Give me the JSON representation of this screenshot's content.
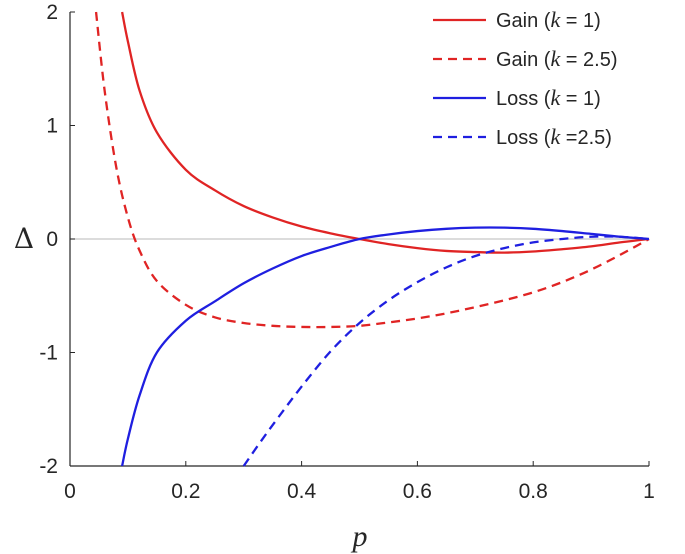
{
  "chart_data": {
    "type": "line",
    "title": "",
    "xlabel": "p",
    "ylabel": "Δ",
    "xlim": [
      0,
      1
    ],
    "ylim": [
      -2,
      2
    ],
    "xticks": [
      "0",
      "0.2",
      "0.4",
      "0.6",
      "0.8",
      "1"
    ],
    "yticks": [
      "-2",
      "-1",
      "0",
      "1",
      "2"
    ],
    "legend_position": "top-right",
    "reference_line": {
      "y": 0,
      "color": "#c8c8c8"
    },
    "series": [
      {
        "name": "Gain (k = 1)",
        "color": "#e02424",
        "dash": "solid",
        "x": [
          0.09,
          0.1,
          0.12,
          0.15,
          0.2,
          0.25,
          0.3,
          0.35,
          0.4,
          0.45,
          0.5,
          0.55,
          0.6,
          0.65,
          0.7,
          0.75,
          0.8,
          0.85,
          0.9,
          0.95,
          1.0
        ],
        "y": [
          2.0,
          1.74,
          1.31,
          0.94,
          0.61,
          0.43,
          0.29,
          0.19,
          0.11,
          0.05,
          0.0,
          -0.045,
          -0.08,
          -0.105,
          -0.115,
          -0.12,
          -0.11,
          -0.09,
          -0.065,
          -0.03,
          0.0
        ]
      },
      {
        "name": "Gain (k = 2.5)",
        "color": "#e02424",
        "dash": "dashed",
        "x": [
          0.045,
          0.06,
          0.08,
          0.1,
          0.12,
          0.15,
          0.2,
          0.25,
          0.3,
          0.35,
          0.4,
          0.45,
          0.5,
          0.55,
          0.6,
          0.65,
          0.7,
          0.75,
          0.8,
          0.85,
          0.9,
          0.95,
          1.0
        ],
        "y": [
          2.0,
          1.3,
          0.63,
          0.19,
          -0.1,
          -0.37,
          -0.58,
          -0.69,
          -0.74,
          -0.765,
          -0.775,
          -0.775,
          -0.765,
          -0.735,
          -0.7,
          -0.655,
          -0.6,
          -0.54,
          -0.47,
          -0.38,
          -0.27,
          -0.14,
          0.0
        ]
      },
      {
        "name": "Loss (k = 1)",
        "color": "#1f1fe0",
        "dash": "solid",
        "x": [
          0.09,
          0.1,
          0.12,
          0.15,
          0.2,
          0.25,
          0.3,
          0.35,
          0.4,
          0.45,
          0.5,
          0.55,
          0.6,
          0.65,
          0.7,
          0.75,
          0.8,
          0.85,
          0.9,
          0.95,
          1.0
        ],
        "y": [
          -2.0,
          -1.76,
          -1.38,
          -1.0,
          -0.72,
          -0.55,
          -0.39,
          -0.26,
          -0.15,
          -0.07,
          0.0,
          0.04,
          0.07,
          0.09,
          0.1,
          0.1,
          0.09,
          0.07,
          0.045,
          0.02,
          0.0
        ]
      },
      {
        "name": "Loss (k =2.5)",
        "color": "#1f1fe0",
        "dash": "dashed",
        "x": [
          0.3,
          0.33,
          0.36,
          0.4,
          0.45,
          0.5,
          0.55,
          0.6,
          0.65,
          0.7,
          0.75,
          0.8,
          0.85,
          0.9,
          0.95,
          1.0
        ],
        "y": [
          -2.0,
          -1.78,
          -1.57,
          -1.3,
          -0.99,
          -0.74,
          -0.54,
          -0.38,
          -0.25,
          -0.15,
          -0.08,
          -0.03,
          0.0,
          0.02,
          0.02,
          0.0
        ]
      }
    ]
  },
  "legend": {
    "entries": [
      {
        "prefix": "Gain (",
        "var": "k",
        "suffix": " = 1)"
      },
      {
        "prefix": "Gain (",
        "var": "k",
        "suffix": " = 2.5)"
      },
      {
        "prefix": "Loss (",
        "var": "k",
        "suffix": " = 1)"
      },
      {
        "prefix": "Loss (",
        "var": "k",
        "suffix": " =2.5)"
      }
    ]
  }
}
